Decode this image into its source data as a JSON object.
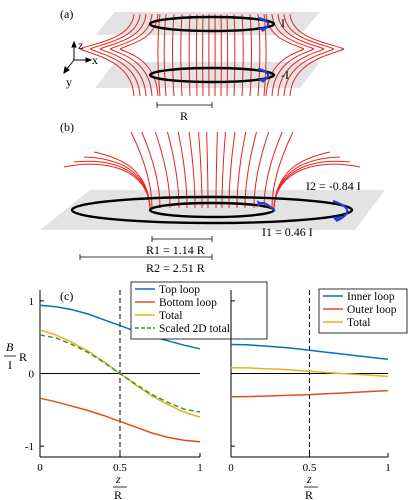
{
  "panel_a": {
    "label": "(a)",
    "current_top": "I",
    "current_bottom": "-I",
    "axes": {
      "z": "z",
      "x": "x",
      "y": "y"
    },
    "dimension": "R"
  },
  "panel_b": {
    "label": "(b)",
    "i2_label": "I2 = -0.84 I",
    "i1_label": "I1 = 0.46 I",
    "r1_label": "R1 = 1.14 R",
    "r2_label": "R2 = 2.51 R"
  },
  "panel_c": {
    "label": "(c)",
    "ylabel_num": "B",
    "ylabel_den": "I",
    "ylabel_suffix": "R",
    "xlabel_num": "z",
    "xlabel_den": "R"
  },
  "colors": {
    "blue": "#0072BD",
    "orange": "#D95319",
    "yellow": "#EDB120",
    "green": "#2CA02C",
    "fieldline": "#E8231C",
    "plane": "#E3E3E3"
  },
  "chart_data": [
    {
      "type": "line",
      "x": [
        0,
        0.1,
        0.2,
        0.3,
        0.4,
        0.5,
        0.6,
        0.7,
        0.8,
        0.9,
        1.0
      ],
      "series": [
        {
          "name": "Top loop",
          "color": "#0072BD",
          "values": [
            0.94,
            0.92,
            0.88,
            0.82,
            0.74,
            0.66,
            0.58,
            0.51,
            0.45,
            0.39,
            0.34
          ]
        },
        {
          "name": "Bottom loop",
          "color": "#D95319",
          "values": [
            -0.34,
            -0.39,
            -0.45,
            -0.51,
            -0.58,
            -0.66,
            -0.74,
            -0.82,
            -0.88,
            -0.92,
            -0.94
          ]
        },
        {
          "name": "Total",
          "color": "#EDB120",
          "values": [
            0.6,
            0.53,
            0.43,
            0.31,
            0.16,
            0.0,
            -0.16,
            -0.31,
            -0.43,
            -0.53,
            -0.6
          ]
        },
        {
          "name": "Scaled 2D total",
          "color": "#2CA02C",
          "dashed": true,
          "values": [
            0.53,
            0.49,
            0.4,
            0.29,
            0.15,
            0.0,
            -0.15,
            -0.29,
            -0.4,
            -0.49,
            -0.53
          ]
        }
      ],
      "xlim": [
        0,
        1
      ],
      "ylim": [
        -1.15,
        1.15
      ],
      "xticks": [
        "0",
        "0.5",
        "1"
      ],
      "yticks": [
        "1",
        "0",
        "-1"
      ],
      "vline": 0.5
    },
    {
      "type": "line",
      "x": [
        0,
        0.1,
        0.2,
        0.3,
        0.4,
        0.5,
        0.6,
        0.7,
        0.8,
        0.9,
        1.0
      ],
      "series": [
        {
          "name": "Inner loop",
          "color": "#0072BD",
          "values": [
            0.4,
            0.395,
            0.38,
            0.365,
            0.345,
            0.32,
            0.295,
            0.27,
            0.245,
            0.22,
            0.195
          ]
        },
        {
          "name": "Outer loop",
          "color": "#D95319",
          "values": [
            -0.32,
            -0.318,
            -0.312,
            -0.305,
            -0.298,
            -0.29,
            -0.28,
            -0.27,
            -0.258,
            -0.246,
            -0.235
          ]
        },
        {
          "name": "Total",
          "color": "#EDB120",
          "values": [
            0.08,
            0.077,
            0.068,
            0.06,
            0.047,
            0.03,
            0.015,
            0.0,
            -0.013,
            -0.026,
            -0.04
          ]
        }
      ],
      "xlim": [
        0,
        1
      ],
      "ylim": [
        -1.15,
        1.15
      ],
      "xticks": [
        "0",
        "0.5",
        "1"
      ],
      "vline": 0.5
    }
  ]
}
